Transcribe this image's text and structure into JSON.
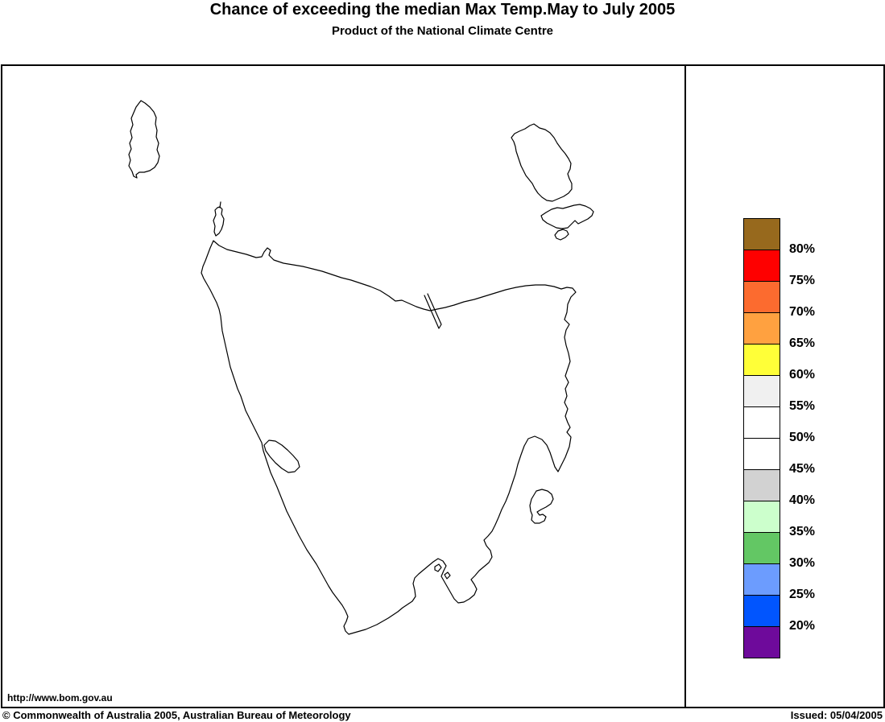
{
  "title": "Chance of exceeding the median Max Temp.May to July 2005",
  "subtitle": "Product of the National Climate Centre",
  "map": {
    "url": "http://www.bom.gov.au"
  },
  "legend": {
    "colors": [
      "#97691D",
      "#FE0000",
      "#FC6B2F",
      "#FFA140",
      "#FFFF38",
      "#F0F0F0",
      "#FFFFFF",
      "#FFFFFF",
      "#D2D2D2",
      "#CCFFCC",
      "#63C764",
      "#6C9CFE",
      "#0155FE",
      "#6E0A9B"
    ],
    "labels": [
      "80%",
      "75%",
      "70%",
      "65%",
      "60%",
      "55%",
      "50%",
      "45%",
      "40%",
      "35%",
      "30%",
      "25%",
      "20%"
    ],
    "outline_color": "#000000"
  },
  "footer": {
    "copyright": "© Commonwealth of Australia 2005, Australian Bureau of Meteorology",
    "issued": "Issued: 05/04/2005"
  }
}
